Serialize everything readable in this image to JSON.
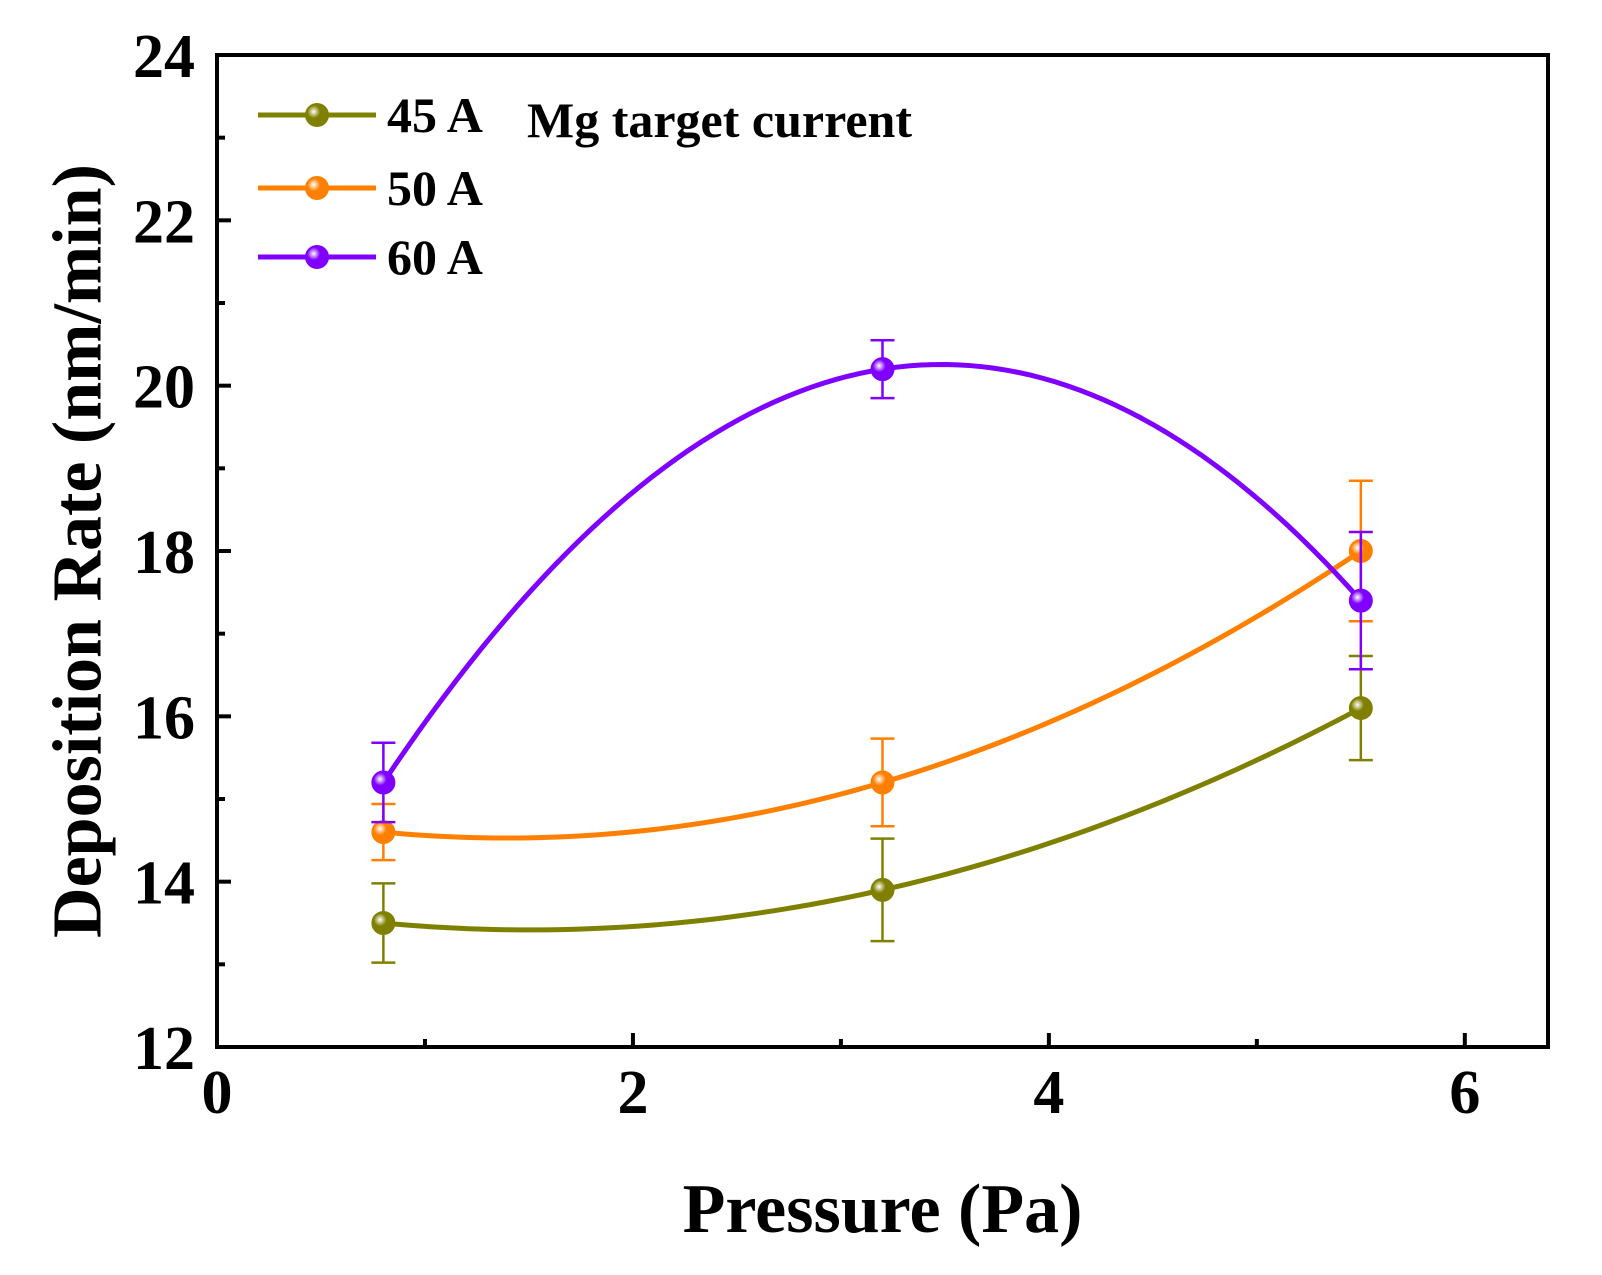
{
  "chart_data": {
    "type": "line",
    "title": "",
    "xlabel": "Pressure (Pa)",
    "ylabel": "Deposition Rate (nm/min)",
    "xlim": [
      0,
      6.4
    ],
    "ylim": [
      12,
      24
    ],
    "xticks": [
      0,
      2,
      4,
      6
    ],
    "xtick_labels": [
      "0",
      "2",
      "4",
      "6"
    ],
    "yticks": [
      12,
      14,
      16,
      18,
      20,
      22,
      24
    ],
    "ytick_labels": [
      "12",
      "14",
      "16",
      "18",
      "20",
      "22",
      "24"
    ],
    "grid": false,
    "legend_title": "Mg target current",
    "legend_position": "top-left",
    "x": [
      0.8,
      3.2,
      5.5
    ],
    "series": [
      {
        "name": "45 A",
        "color": "#808000",
        "values": [
          13.5,
          13.9,
          16.1
        ],
        "errors": [
          0.48,
          0.62,
          0.63
        ]
      },
      {
        "name": "50 A",
        "color": "#ff8000",
        "values": [
          14.6,
          15.2,
          18.0
        ],
        "errors": [
          0.34,
          0.53,
          0.85
        ]
      },
      {
        "name": "60 A",
        "color": "#8000ff",
        "values": [
          15.2,
          20.2,
          17.4
        ],
        "errors": [
          0.48,
          0.35,
          0.83
        ]
      }
    ]
  }
}
